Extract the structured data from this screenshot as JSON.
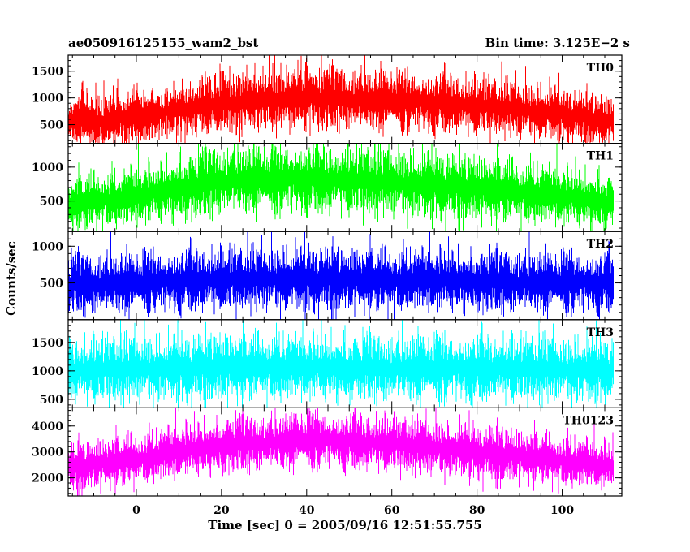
{
  "chart_data": {
    "type": "line",
    "title_left": "ae050916125155_wam2_bst",
    "title_right": "Bin time: 3.125E−2 s",
    "xlabel": "Time [sec] 0 = 2005/09/16 12:51:55.755",
    "ylabel": "Counts/sec",
    "xlim": [
      -16,
      114
    ],
    "x_ticks": [
      0,
      20,
      40,
      60,
      80,
      100
    ],
    "x_data_range": [
      -16,
      112
    ],
    "bin_time": 0.03125,
    "grid": false,
    "panels": [
      {
        "name": "TH0",
        "color": "#ff0000",
        "ylim": [
          150,
          1800
        ],
        "y_ticks": [
          500,
          1000,
          1500
        ],
        "profile": {
          "x": [
            -16,
            0,
            20,
            40,
            60,
            80,
            100,
            112
          ],
          "y": [
            520,
            650,
            900,
            1000,
            950,
            850,
            700,
            540
          ]
        }
      },
      {
        "name": "TH1",
        "color": "#00ff00",
        "ylim": [
          50,
          1350
        ],
        "y_ticks": [
          500,
          1000
        ],
        "profile": {
          "x": [
            -16,
            0,
            20,
            40,
            60,
            80,
            100,
            112
          ],
          "y": [
            450,
            560,
            800,
            820,
            760,
            680,
            560,
            470
          ]
        }
      },
      {
        "name": "TH2",
        "color": "#0000ff",
        "ylim": [
          0,
          1200
        ],
        "y_ticks": [
          500,
          1000
        ],
        "profile": {
          "x": [
            -16,
            0,
            20,
            40,
            60,
            80,
            100,
            112
          ],
          "y": [
            480,
            500,
            540,
            550,
            530,
            520,
            500,
            490
          ]
        }
      },
      {
        "name": "TH3",
        "color": "#00ffff",
        "ylim": [
          350,
          1900
        ],
        "y_ticks": [
          500,
          1000,
          1500
        ],
        "profile": {
          "x": [
            -16,
            0,
            20,
            40,
            60,
            80,
            100,
            112
          ],
          "y": [
            1000,
            1020,
            1050,
            1050,
            1040,
            1030,
            1010,
            1000
          ]
        }
      },
      {
        "name": "TH0123",
        "color": "#ff00ff",
        "ylim": [
          1300,
          4700
        ],
        "y_ticks": [
          2000,
          3000,
          4000
        ],
        "profile": {
          "x": [
            -16,
            0,
            20,
            40,
            60,
            80,
            100,
            112
          ],
          "y": [
            2400,
            2700,
            3250,
            3450,
            3300,
            3000,
            2650,
            2400
          ]
        }
      }
    ]
  }
}
